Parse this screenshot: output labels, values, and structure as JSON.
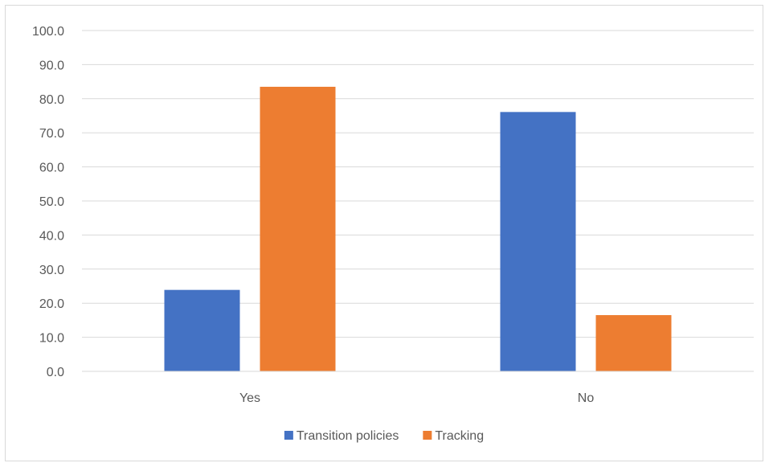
{
  "chart_data": {
    "type": "bar",
    "title": "",
    "xlabel": "",
    "ylabel": "",
    "categories": [
      "Yes",
      "No"
    ],
    "series": [
      {
        "name": "Transition policies",
        "color": "#4472c4",
        "values": [
          23.9,
          76.1
        ]
      },
      {
        "name": "Tracking",
        "color": "#ed7d31",
        "values": [
          83.5,
          16.5
        ]
      }
    ],
    "ylim": [
      0,
      100
    ],
    "yticks": [
      "0.0",
      "10.0",
      "20.0",
      "30.0",
      "40.0",
      "50.0",
      "60.0",
      "70.0",
      "80.0",
      "90.0",
      "100.0"
    ],
    "grid": true,
    "legend_position": "bottom"
  }
}
